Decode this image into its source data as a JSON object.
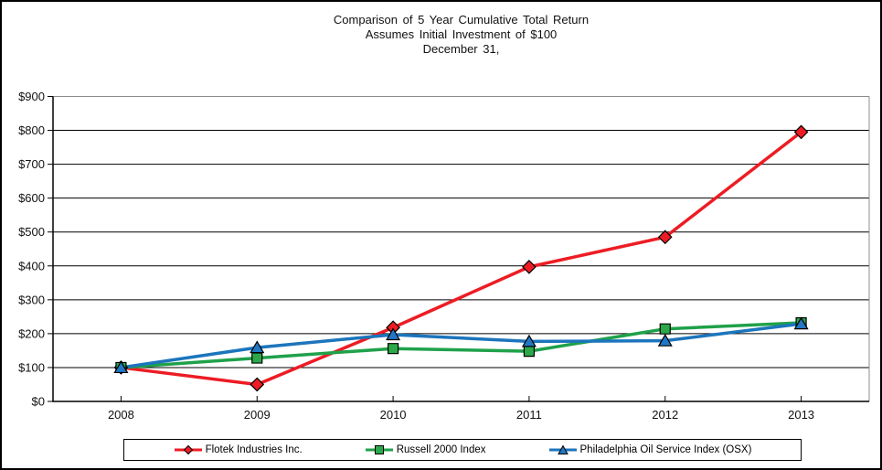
{
  "title": {
    "line1": "Comparison of 5 Year Cumulative Total Return",
    "line2": "Assumes Initial Investment of $100",
    "line3": "December 31,"
  },
  "chart_data": {
    "type": "line",
    "categories": [
      "2008",
      "2009",
      "2010",
      "2011",
      "2012",
      "2013"
    ],
    "series": [
      {
        "name": "Flotek Industries Inc.",
        "marker": "diamond",
        "color": "#ED1C24",
        "marker_fill": "#ED1C24",
        "values": [
          100,
          50,
          218,
          397,
          485,
          795
        ]
      },
      {
        "name": "Russell 2000 Index",
        "marker": "square",
        "color": "#1FA14A",
        "marker_fill": "#2CA84A",
        "values": [
          100,
          128,
          156,
          148,
          214,
          232
        ]
      },
      {
        "name": "Philadelphia Oil Service Index (OSX)",
        "marker": "triangle",
        "color": "#1C75BC",
        "marker_fill": "#2277C5",
        "values": [
          100,
          159,
          197,
          177,
          179,
          229
        ]
      }
    ],
    "title": "Comparison of 5 Year Cumulative Total Return",
    "subtitle": "Assumes Initial Investment of $100",
    "subtitle2": "December 31,",
    "xlabel": "",
    "ylabel": "",
    "ylim": [
      0,
      900
    ],
    "y_tick_step": 100,
    "y_tick_prefix": "$",
    "y_tick_labels": [
      "$0",
      "$100",
      "$200",
      "$300",
      "$400",
      "$500",
      "$600",
      "$700",
      "$800",
      "$900"
    ],
    "grid": "horizontal",
    "legend_position": "bottom"
  },
  "colors": {
    "gridline": "#000000",
    "plot_border": "#8C8C8C",
    "axis": "#000000",
    "marker_outline": "#000000"
  }
}
